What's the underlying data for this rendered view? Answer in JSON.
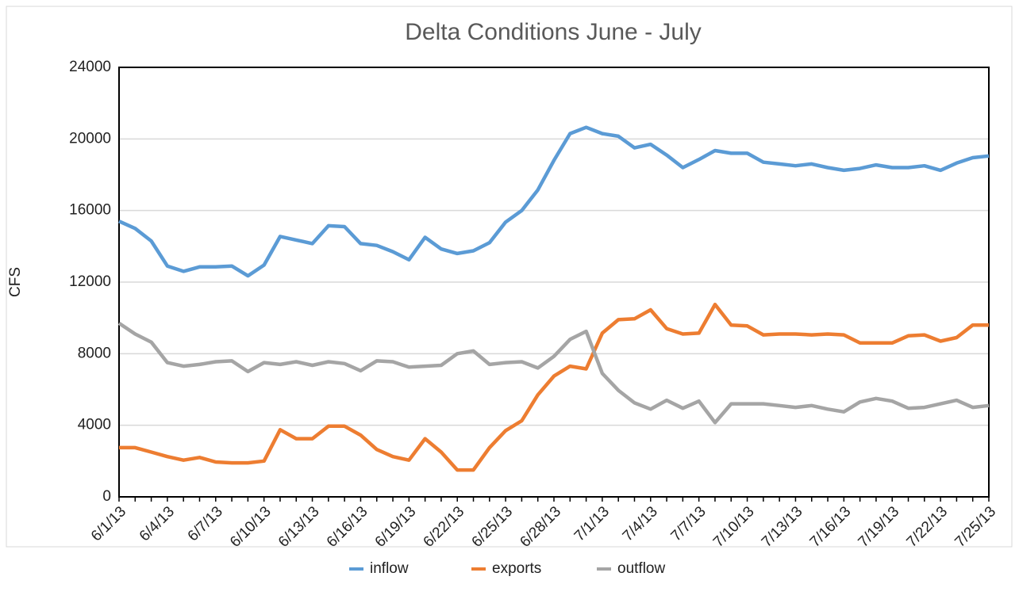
{
  "chart_data": {
    "type": "line",
    "title": "Delta Conditions June - July",
    "y_label": "CFS",
    "categories": [
      "6/1/13",
      null,
      null,
      "6/4/13",
      null,
      null,
      "6/7/13",
      null,
      null,
      "6/10/13",
      null,
      null,
      "6/13/13",
      null,
      null,
      "6/16/13",
      null,
      null,
      "6/19/13",
      null,
      null,
      "6/22/13",
      null,
      null,
      "6/25/13",
      null,
      null,
      "6/28/13",
      null,
      null,
      "7/1/13",
      null,
      null,
      "7/4/13",
      null,
      null,
      "7/7/13",
      null,
      null,
      "7/10/13",
      null,
      null,
      "7/13/13",
      null,
      null,
      "7/16/13",
      null,
      null,
      "7/19/13",
      null,
      null,
      "7/22/13",
      null,
      null,
      "7/25/13"
    ],
    "series": [
      {
        "name": "inflow",
        "color": "#5b9bd5",
        "values": [
          15400,
          15000,
          14300,
          12900,
          12600,
          12850,
          12850,
          12900,
          12350,
          12950,
          14550,
          14350,
          14150,
          15150,
          15100,
          14150,
          14050,
          13700,
          13250,
          14500,
          13850,
          13600,
          13750,
          14200,
          15350,
          16000,
          17150,
          18800,
          20300,
          20650,
          20300,
          20150,
          19500,
          19700,
          19100,
          18400,
          18850,
          19350,
          19200,
          19200,
          18700,
          18600,
          18500,
          18600,
          18400,
          18250,
          18350,
          18550,
          18400,
          18400,
          18500,
          18250,
          18650,
          18950,
          19050
        ]
      },
      {
        "name": "exports",
        "color": "#ed7d31",
        "values": [
          2750,
          2750,
          2500,
          2250,
          2050,
          2200,
          1950,
          1900,
          1900,
          2000,
          3750,
          3250,
          3250,
          3950,
          3950,
          3450,
          2650,
          2250,
          2050,
          3250,
          2500,
          1500,
          1500,
          2750,
          3700,
          4250,
          5700,
          6750,
          7300,
          7150,
          9150,
          9900,
          9950,
          10450,
          9400,
          9100,
          9150,
          10750,
          9600,
          9550,
          9050,
          9100,
          9100,
          9050,
          9100,
          9050,
          8600,
          8600,
          8600,
          9000,
          9050,
          8700,
          8900,
          9600,
          9600
        ]
      },
      {
        "name": "outflow",
        "color": "#a5a5a5",
        "values": [
          9700,
          9100,
          8650,
          7500,
          7300,
          7400,
          7550,
          7600,
          7000,
          7500,
          7400,
          7550,
          7350,
          7550,
          7450,
          7050,
          7600,
          7550,
          7250,
          7300,
          7350,
          8000,
          8150,
          7400,
          7500,
          7550,
          7200,
          7850,
          8800,
          9250,
          6900,
          5950,
          5250,
          4900,
          5400,
          4950,
          5350,
          4150,
          5200,
          5200,
          5200,
          5100,
          5000,
          5100,
          4900,
          4750,
          5300,
          5500,
          5350,
          4950,
          5000,
          5200,
          5400,
          5000,
          5100
        ]
      }
    ],
    "ylim": [
      0,
      24000
    ],
    "yticks": [
      0,
      4000,
      8000,
      12000,
      16000,
      20000,
      24000
    ],
    "grid": true,
    "legend": "bottom"
  }
}
